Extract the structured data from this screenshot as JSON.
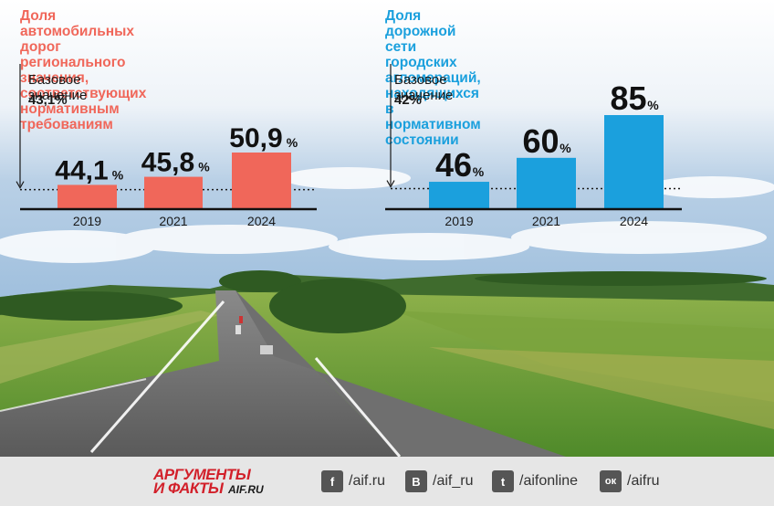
{
  "colors": {
    "left_accent": "#f0675a",
    "right_accent": "#1ba0dd"
  },
  "left": {
    "title_lines": [
      "Доля автомобильных дорог регионального",
      "значения, соответствующих нормативным",
      "требованиям"
    ],
    "baseline_label": "Базовое значение",
    "baseline_value": "43,1%",
    "value_labels": [
      "44,1",
      "45,8",
      "50,9"
    ],
    "unit": "%"
  },
  "right": {
    "title_lines": [
      "Доля дорожной сети городских",
      "агломераций, находящихся в нормативном",
      "состоянии"
    ],
    "baseline_label": "Базовое значение",
    "baseline_value": "42%",
    "value_labels": [
      "46",
      "60",
      "85"
    ],
    "unit": "%"
  },
  "chart_data": [
    {
      "type": "bar",
      "title": "Доля автомобильных дорог регионального значения, соответствующих нормативным требованиям",
      "categories": [
        "2019",
        "2021",
        "2024"
      ],
      "values": [
        44.1,
        45.8,
        50.9
      ],
      "baseline": 43.1,
      "color": "#f0675a"
    },
    {
      "type": "bar",
      "title": "Доля дорожной сети городских агломераций, находящихся в нормативном состоянии",
      "categories": [
        "2019",
        "2021",
        "2024"
      ],
      "values": [
        46,
        60,
        85
      ],
      "baseline": 42,
      "color": "#1ba0dd"
    }
  ],
  "footer": {
    "logo_line1": "АРГУМЕНТЫ",
    "logo_line2": "И ФАКТЫ",
    "logo_domain": "AIF.RU",
    "social": [
      {
        "icon": "facebook-icon",
        "glyph": "f",
        "text": "/aif.ru"
      },
      {
        "icon": "vk-icon",
        "glyph": "В",
        "text": "/aif_ru"
      },
      {
        "icon": "twitter-icon",
        "glyph": "t",
        "text": "/aifonline"
      },
      {
        "icon": "odnoklassniki-icon",
        "glyph": "ок",
        "text": "/aifru"
      }
    ]
  }
}
